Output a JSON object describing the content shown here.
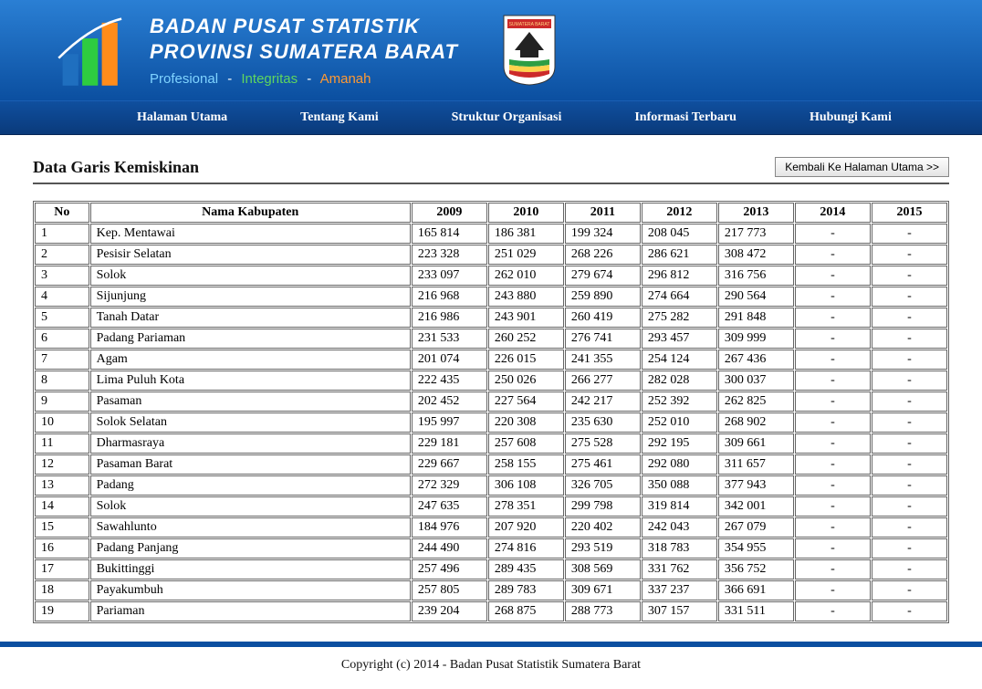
{
  "header": {
    "org_line1": "BADAN PUSAT STATISTIK",
    "org_line2": "PROVINSI SUMATERA BARAT",
    "tag1": "Profesional",
    "tag2": "Integritas",
    "tag3": "Amanah",
    "crest_label": "SUMATERA BARAT"
  },
  "nav": {
    "items": [
      "Halaman Utama",
      "Tentang Kami",
      "Struktur Organisasi",
      "Informasi Terbaru",
      "Hubungi Kami"
    ]
  },
  "page": {
    "title": "Data Garis Kemiskinan",
    "back_label": "Kembali Ke Halaman Utama >>"
  },
  "table": {
    "columns": [
      "No",
      "Nama Kabupaten",
      "2009",
      "2010",
      "2011",
      "2012",
      "2013",
      "2014",
      "2015"
    ],
    "rows": [
      [
        "1",
        "Kep. Mentawai",
        "165 814",
        "186 381",
        "199 324",
        "208 045",
        "217 773",
        "-",
        "-"
      ],
      [
        "2",
        "Pesisir Selatan",
        "223 328",
        "251 029",
        "268 226",
        "286 621",
        "308 472",
        "-",
        "-"
      ],
      [
        "3",
        "Solok",
        "233 097",
        "262 010",
        "279 674",
        "296 812",
        "316 756",
        "-",
        "-"
      ],
      [
        "4",
        "Sijunjung",
        "216 968",
        "243 880",
        "259 890",
        "274 664",
        "290 564",
        "-",
        "-"
      ],
      [
        "5",
        "Tanah Datar",
        "216 986",
        "243 901",
        "260 419",
        "275 282",
        "291 848",
        "-",
        "-"
      ],
      [
        "6",
        "Padang Pariaman",
        "231 533",
        "260 252",
        "276 741",
        "293 457",
        "309 999",
        "-",
        "-"
      ],
      [
        "7",
        "Agam",
        "201 074",
        "226 015",
        "241 355",
        "254 124",
        "267 436",
        "-",
        "-"
      ],
      [
        "8",
        "Lima Puluh Kota",
        "222 435",
        "250 026",
        "266 277",
        "282 028",
        "300 037",
        "-",
        "-"
      ],
      [
        "9",
        "Pasaman",
        "202 452",
        "227 564",
        "242 217",
        "252 392",
        "262 825",
        "-",
        "-"
      ],
      [
        "10",
        "Solok Selatan",
        "195 997",
        "220 308",
        "235 630",
        "252 010",
        "268 902",
        "-",
        "-"
      ],
      [
        "11",
        "Dharmasraya",
        "229 181",
        "257 608",
        "275 528",
        "292 195",
        "309 661",
        "-",
        "-"
      ],
      [
        "12",
        "Pasaman Barat",
        "229 667",
        "258 155",
        "275 461",
        "292 080",
        "311 657",
        "-",
        "-"
      ],
      [
        "13",
        "Padang",
        "272 329",
        "306 108",
        "326 705",
        "350 088",
        "377 943",
        "-",
        "-"
      ],
      [
        "14",
        "Solok",
        "247 635",
        "278 351",
        "299 798",
        "319 814",
        "342 001",
        "-",
        "-"
      ],
      [
        "15",
        "Sawahlunto",
        "184 976",
        "207 920",
        "220 402",
        "242 043",
        "267 079",
        "-",
        "-"
      ],
      [
        "16",
        "Padang Panjang",
        "244 490",
        "274 816",
        "293 519",
        "318 783",
        "354 955",
        "-",
        "-"
      ],
      [
        "17",
        "Bukittinggi",
        "257 496",
        "289 435",
        "308 569",
        "331 762",
        "356 752",
        "-",
        "-"
      ],
      [
        "18",
        "Payakumbuh",
        "257 805",
        "289 783",
        "309 671",
        "337 237",
        "366 691",
        "-",
        "-"
      ],
      [
        "19",
        "Pariaman",
        "239 204",
        "268 875",
        "288 773",
        "307 157",
        "331 511",
        "-",
        "-"
      ]
    ]
  },
  "footer": {
    "text": "Copyright (c) 2014 - Badan Pusat Statistik Sumatera Barat"
  }
}
